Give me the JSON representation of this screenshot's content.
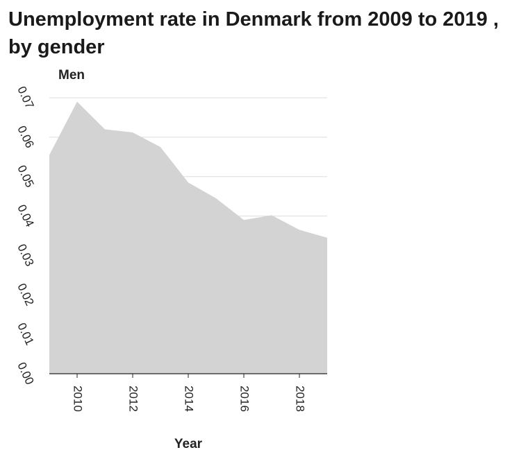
{
  "chart_data": {
    "type": "area",
    "title": "Unemployment rate in Denmark from 2009 to 2019 , by gender",
    "xlabel": "Year",
    "ylabel": "Men",
    "x": [
      2009,
      2010,
      2011,
      2012,
      2013,
      2014,
      2015,
      2016,
      2017,
      2018,
      2019
    ],
    "series": [
      {
        "name": "Men",
        "values": [
          0.0555,
          0.069,
          0.062,
          0.0612,
          0.0575,
          0.0485,
          0.0445,
          0.039,
          0.0402,
          0.0365,
          0.0345
        ]
      }
    ],
    "xlim": [
      2009,
      2019
    ],
    "ylim": [
      0,
      0.07
    ],
    "x_ticks": [
      "2010",
      "2012",
      "2014",
      "2016",
      "2018"
    ],
    "y_ticks": [
      "0.00",
      "0.01",
      "0.02",
      "0.03",
      "0.04",
      "0.05",
      "0.06",
      "0.07"
    ],
    "grid": "horizontal",
    "fill_color": "#d3d3d3",
    "grid_color": "#dddddd"
  }
}
